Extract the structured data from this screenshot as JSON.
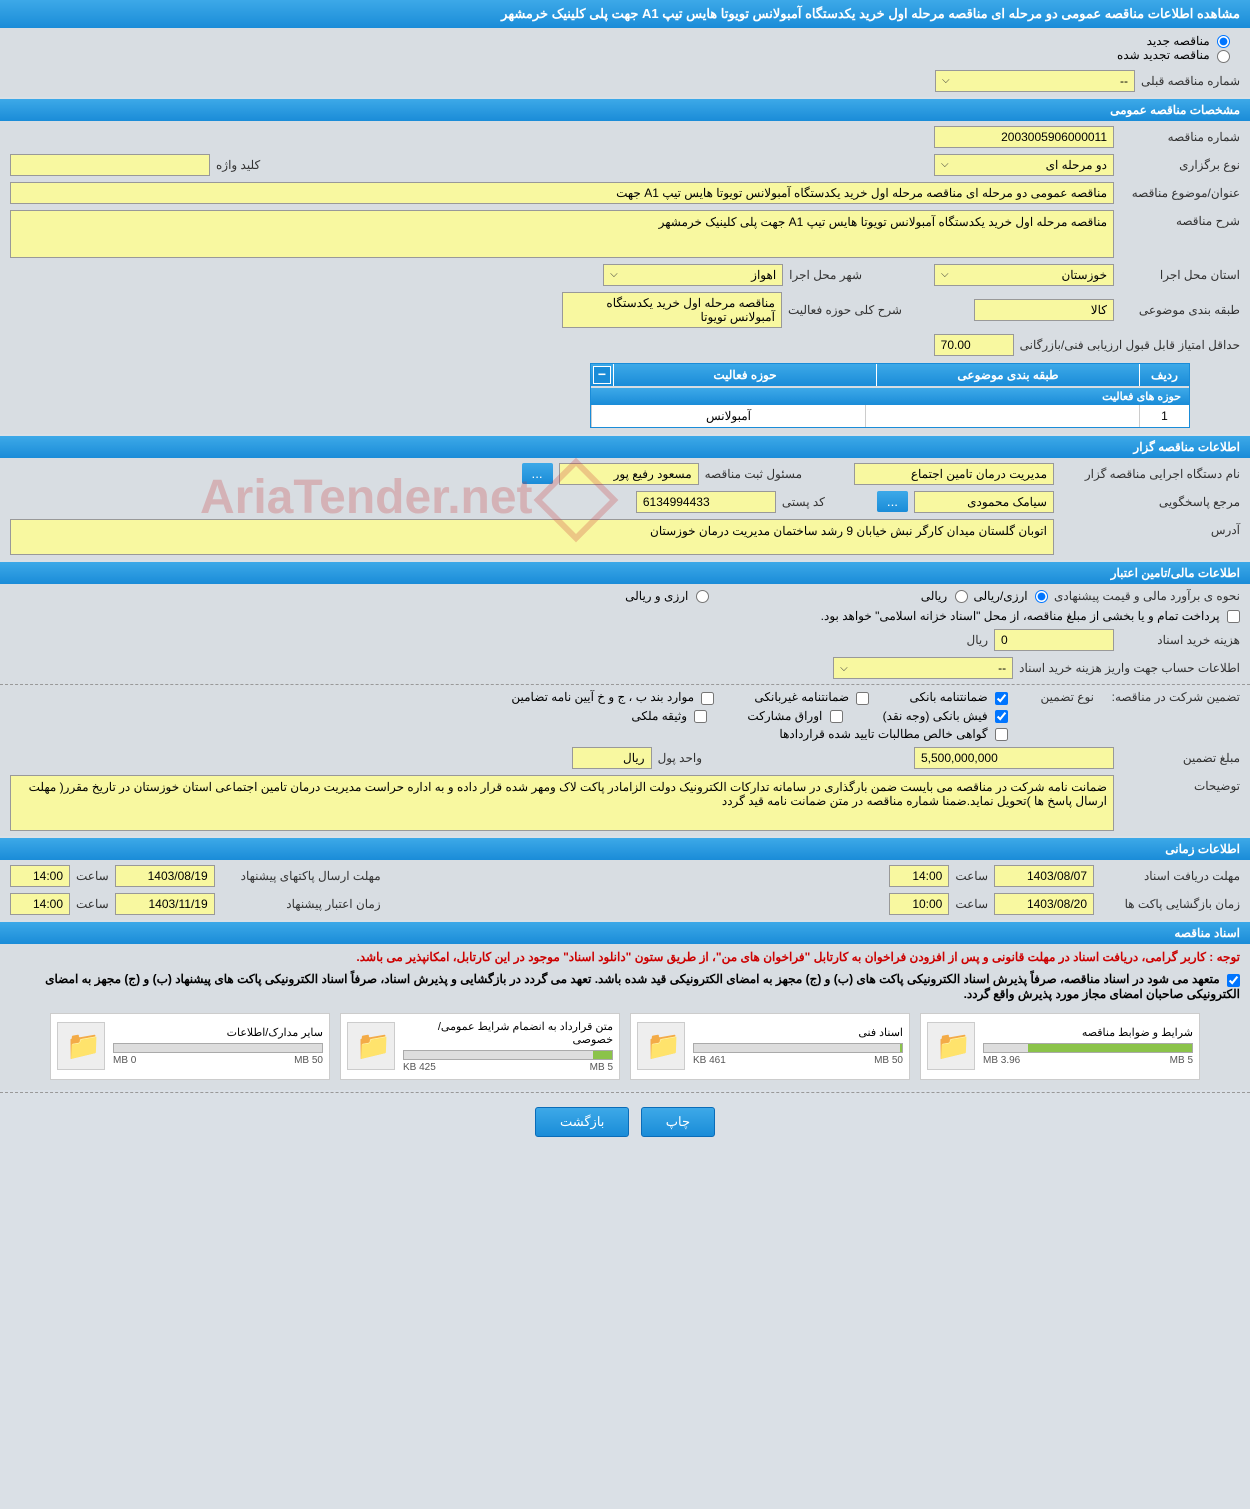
{
  "page_title": "مشاهده اطلاعات مناقصه عمومی دو مرحله ای مناقصه مرحله اول خرید یکدستگاه آمبولانس تویوتا هایس تیپ A1 جهت پلی کلینیک خرمشهر",
  "radio_options": {
    "new": "مناقصه جدید",
    "renewed": "مناقصه تجدید شده"
  },
  "prev_number": {
    "label": "شماره مناقصه قبلی",
    "value": "--"
  },
  "sections": {
    "general": "مشخصات مناقصه عمومی",
    "organizer": "اطلاعات مناقصه گزار",
    "financial": "اطلاعات مالی/تامین اعتبار",
    "timing": "اطلاعات زمانی",
    "documents": "اسناد مناقصه"
  },
  "general": {
    "tender_no": {
      "label": "شماره مناقصه",
      "value": "2003005906000011"
    },
    "hold_type": {
      "label": "نوع برگزاری",
      "value": "دو مرحله ای"
    },
    "keyword": {
      "label": "کلید واژه",
      "value": ""
    },
    "subject": {
      "label": "عنوان/موضوع مناقصه",
      "value": "مناقصه عمومی دو مرحله ای مناقصه مرحله اول خرید یکدستگاه آمبولانس تویوتا هایس تیپ A1 جهت"
    },
    "desc": {
      "label": "شرح مناقصه",
      "value": "مناقصه مرحله اول خرید یکدستگاه آمبولانس تویوتا هایس تیپ A1 جهت پلی کلینیک خرمشهر"
    },
    "province": {
      "label": "استان محل اجرا",
      "value": "خوزستان"
    },
    "city": {
      "label": "شهر محل اجرا",
      "value": "اهواز"
    },
    "category": {
      "label": "طبقه بندی موضوعی",
      "value": "کالا"
    },
    "activity_desc": {
      "label": "شرح کلی حوزه فعالیت",
      "value": "مناقصه مرحله اول خرید یکدستگاه آمبولانس تویوتا"
    },
    "min_score": {
      "label": "حداقل امتیاز قابل قبول ارزیابی فنی/بازرگانی",
      "value": "70.00"
    }
  },
  "activity_table": {
    "title": "حوزه های فعالیت",
    "headers": {
      "row": "ردیف",
      "category": "طبقه بندی موضوعی",
      "activity": "حوزه فعالیت"
    },
    "rows": [
      {
        "row": "1",
        "category": "",
        "activity": "آمبولانس"
      }
    ]
  },
  "organizer": {
    "agency": {
      "label": "نام دستگاه اجرایی مناقصه گزار",
      "value": "مدیریت درمان تامین اجتماع"
    },
    "registrar": {
      "label": "مسئول ثبت مناقصه",
      "value": "مسعود رفیع پور"
    },
    "contact": {
      "label": "مرجع پاسخگویی",
      "value": "سیامک محمودی"
    },
    "postal": {
      "label": "کد پستی",
      "value": "6134994433"
    },
    "address": {
      "label": "آدرس",
      "value": "اتوبان گلستان میدان کارگر نبش خیابان 9 رشد ساختمان مدیریت درمان خوزستان"
    },
    "more": "..."
  },
  "financial": {
    "method_label": "نحوه ی برآورد مالی و قیمت پیشنهادی",
    "method_opts": {
      "arzi_riali": "ارزی/ریالی",
      "riali": "ریالی",
      "arzi": "ارزی و ریالی"
    },
    "payment_note": "پرداخت تمام و یا بخشی از مبلغ مناقصه، از محل \"اسناد خزانه اسلامی\" خواهد بود.",
    "purchase_cost": {
      "label": "هزینه خرید اسناد",
      "value": "0",
      "unit": "ریال"
    },
    "account_info": {
      "label": "اطلاعات حساب جهت واریز هزینه خرید اسناد",
      "value": "--"
    },
    "guarantee_label": "تضمین شرکت در مناقصه:",
    "guarantee_type_label": "نوع تضمین",
    "guarantee_types": {
      "bank": "ضمانتنامه بانکی",
      "nonbank": "ضمانتنامه غیربانکی",
      "bond": "موارد بند ب ، ج و خ آیین نامه تضامین",
      "cash": "فیش بانکی (وجه نقد)",
      "participation": "اوراق مشارکت",
      "property": "وثیقه ملکی",
      "receivables": "گواهی خالص مطالبات تایید شده قراردادها"
    },
    "guarantee_amount": {
      "label": "مبلغ تضمین",
      "value": "5,500,000,000",
      "unit_label": "واحد پول",
      "unit": "ریال"
    },
    "notes": {
      "label": "توضیحات",
      "value": "ضمانت نامه شرکت در مناقصه می بایست ضمن بارگذاری در سامانه تدارکات الکترونیک دولت الزامادر پاکت لاک ومهر شده قرار داده و به اداره حراست مدیریت درمان تامین اجتماعی استان خوزستان در تاریخ مقرر( مهلت ارسال پاسخ ها )تحویل نماید.ضمنا شماره مناقصه در متن ضمانت نامه قید گردد"
    }
  },
  "timing": {
    "receive_deadline": {
      "label": "مهلت دریافت اسناد",
      "date": "1403/08/07",
      "time_label": "ساعت",
      "time": "14:00"
    },
    "send_deadline": {
      "label": "مهلت ارسال پاکتهای پیشنهاد",
      "date": "1403/08/19",
      "time_label": "ساعت",
      "time": "14:00"
    },
    "open_time": {
      "label": "زمان بازگشایی پاکت ها",
      "date": "1403/08/20",
      "time_label": "ساعت",
      "time": "10:00"
    },
    "validity": {
      "label": "زمان اعتبار پیشنهاد",
      "date": "1403/11/19",
      "time_label": "ساعت",
      "time": "14:00"
    }
  },
  "notices": {
    "red": "توجه : کاربر گرامی، دریافت اسناد در مهلت قانونی و پس از افزودن فراخوان به کارتابل \"فراخوان های من\"، از طریق ستون \"دانلود اسناد\" موجود در این کارتابل، امکانپذیر می باشد.",
    "black": "متعهد می شود در اسناد مناقصه، صرفاً پذیرش اسناد الکترونیکی پاکت های (ب) و (ج) مجهز به امضای الکترونیکی قید شده باشد. تعهد می گردد در بازگشایی و پذیرش اسناد، صرفاً اسناد الکترونیکی پاکت های پیشنهاد (ب) و (ج) مجهز به امضای الکترونیکی صاحبان امضای مجاز مورد پذیرش واقع گردد."
  },
  "documents": [
    {
      "title": "شرایط و ضوابط مناقصه",
      "size": "3.96 MB",
      "max": "5 MB",
      "fill": 79
    },
    {
      "title": "اسناد فنی",
      "size": "461 KB",
      "max": "50 MB",
      "fill": 1
    },
    {
      "title": "متن قرارداد به انضمام شرایط عمومی/خصوصی",
      "size": "425 KB",
      "max": "5 MB",
      "fill": 9
    },
    {
      "title": "سایر مدارک/اطلاعات",
      "size": "0 MB",
      "max": "50 MB",
      "fill": 0
    }
  ],
  "footer": {
    "print": "چاپ",
    "back": "بازگشت"
  },
  "watermark": "AriaTender.net"
}
